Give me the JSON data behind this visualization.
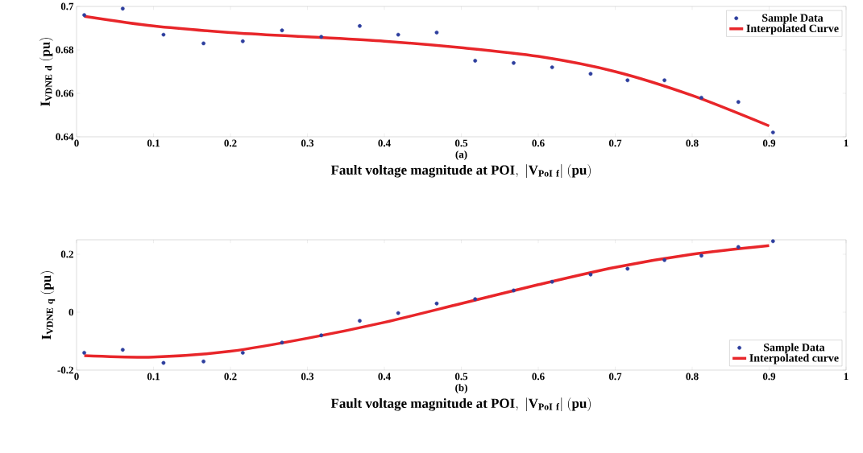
{
  "chart_data": [
    {
      "type": "scatter",
      "ylabel": "\\mathbf{I}_{\\mathbf{VDNE\\ d}}\\ \\mathbf{(pu)}",
      "xlabel": "\\mathbf{Fault\\ voltage\\ magnitude\\ at\\ POI,\\ |V_{PoI\\ f}|\\ (pu)}",
      "annotations": [
        "(a)"
      ],
      "xlim": [
        0,
        1
      ],
      "ylim": [
        0.64,
        0.7
      ],
      "xticks": [
        0,
        0.1,
        0.2,
        0.3,
        0.4,
        0.5,
        0.6,
        0.7,
        0.8,
        0.9,
        1
      ],
      "yticks": [
        0.64,
        0.66,
        0.68,
        0.7
      ],
      "legend": "top right",
      "grid": false,
      "series": [
        {
          "name": "Sample Data",
          "marker": "circle",
          "color": "#2e3f9e",
          "x": [
            0.01,
            0.06,
            0.113,
            0.165,
            0.216,
            0.267,
            0.318,
            0.368,
            0.418,
            0.468,
            0.518,
            0.568,
            0.618,
            0.668,
            0.716,
            0.764,
            0.812,
            0.86,
            0.905
          ],
          "values": [
            0.696,
            0.699,
            0.687,
            0.683,
            0.684,
            0.689,
            0.686,
            0.691,
            0.687,
            0.688,
            0.675,
            0.674,
            0.672,
            0.669,
            0.666,
            0.666,
            0.658,
            0.656,
            0.642
          ]
        },
        {
          "name": "Interpolated Curve",
          "type": "line",
          "marker": "none",
          "color": "#e8262a",
          "x": [
            0.01,
            0.1,
            0.2,
            0.3,
            0.4,
            0.5,
            0.6,
            0.7,
            0.8,
            0.9
          ],
          "values": [
            0.6955,
            0.691,
            0.688,
            0.686,
            0.684,
            0.681,
            0.677,
            0.67,
            0.659,
            0.645
          ]
        }
      ]
    },
    {
      "type": "scatter",
      "ylabel": "\\mathbf{I}_{\\mathbf{VDNE\\ q}}\\ \\mathbf{(pu)}",
      "xlabel": "\\mathbf{Fault\\ voltage\\ magnitude\\ at\\ POI,\\ |V_{PoI\\ f}|\\ (pu)}",
      "annotations": [
        "(b)"
      ],
      "xlim": [
        0,
        1
      ],
      "ylim": [
        -0.2,
        0.25
      ],
      "xticks": [
        0,
        0.1,
        0.2,
        0.3,
        0.4,
        0.5,
        0.6,
        0.7,
        0.8,
        0.9,
        1
      ],
      "yticks": [
        -0.2,
        0,
        0.2
      ],
      "legend": "bottom right",
      "grid": false,
      "series": [
        {
          "name": "Sample Data",
          "marker": "circle",
          "color": "#2e3f9e",
          "x": [
            0.01,
            0.06,
            0.113,
            0.165,
            0.216,
            0.267,
            0.318,
            0.368,
            0.418,
            0.468,
            0.518,
            0.568,
            0.618,
            0.668,
            0.716,
            0.764,
            0.812,
            0.86,
            0.905
          ],
          "values": [
            -0.14,
            -0.13,
            -0.175,
            -0.17,
            -0.14,
            -0.105,
            -0.08,
            -0.03,
            -0.003,
            0.03,
            0.045,
            0.075,
            0.105,
            0.13,
            0.15,
            0.18,
            0.195,
            0.225,
            0.245
          ]
        },
        {
          "name": "Interpolated curve",
          "type": "line",
          "marker": "none",
          "color": "#e8262a",
          "x": [
            0.01,
            0.1,
            0.2,
            0.3,
            0.4,
            0.5,
            0.6,
            0.7,
            0.8,
            0.9
          ],
          "values": [
            -0.15,
            -0.155,
            -0.135,
            -0.09,
            -0.035,
            0.03,
            0.095,
            0.155,
            0.2,
            0.23
          ]
        }
      ]
    }
  ]
}
